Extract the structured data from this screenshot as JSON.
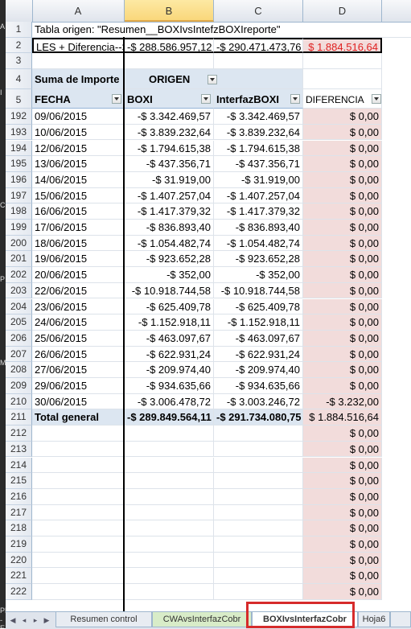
{
  "columns": [
    "A",
    "B",
    "C",
    "D"
  ],
  "left_strip": [
    "A",
    "I",
    "C",
    "P",
    "Ma",
    "PE",
    "-E"
  ],
  "row1": {
    "num": "1",
    "a": "Tabla origen: \"Resumen__BOXIvsIntefzBOXIreporte\""
  },
  "row2": {
    "num": "2",
    "a": "LES + Diferencia-->",
    "b": "-$ 288.586.957,12",
    "c": "-$ 290.471.473,76",
    "d": "$ 1.884.516,64"
  },
  "row3": {
    "num": "3"
  },
  "row4": {
    "num": "4",
    "a": "Suma de Importe",
    "b": "ORIGEN"
  },
  "row5": {
    "num": "5",
    "a": "FECHA",
    "b": "BOXI",
    "c": "InterfazBOXI",
    "d": "DIFERENCIA"
  },
  "data_rows": [
    {
      "num": "192",
      "fecha": "09/06/2015",
      "boxi": "-$ 3.342.469,57",
      "interfaz": "-$ 3.342.469,57",
      "dif": "$ 0,00"
    },
    {
      "num": "193",
      "fecha": "10/06/2015",
      "boxi": "-$ 3.839.232,64",
      "interfaz": "-$ 3.839.232,64",
      "dif": "$ 0,00"
    },
    {
      "num": "194",
      "fecha": "12/06/2015",
      "boxi": "-$ 1.794.615,38",
      "interfaz": "-$ 1.794.615,38",
      "dif": "$ 0,00"
    },
    {
      "num": "195",
      "fecha": "13/06/2015",
      "boxi": "-$ 437.356,71",
      "interfaz": "-$ 437.356,71",
      "dif": "$ 0,00"
    },
    {
      "num": "196",
      "fecha": "14/06/2015",
      "boxi": "-$ 31.919,00",
      "interfaz": "-$ 31.919,00",
      "dif": "$ 0,00"
    },
    {
      "num": "197",
      "fecha": "15/06/2015",
      "boxi": "-$ 1.407.257,04",
      "interfaz": "-$ 1.407.257,04",
      "dif": "$ 0,00"
    },
    {
      "num": "198",
      "fecha": "16/06/2015",
      "boxi": "-$ 1.417.379,32",
      "interfaz": "-$ 1.417.379,32",
      "dif": "$ 0,00"
    },
    {
      "num": "199",
      "fecha": "17/06/2015",
      "boxi": "-$ 836.893,40",
      "interfaz": "-$ 836.893,40",
      "dif": "$ 0,00"
    },
    {
      "num": "200",
      "fecha": "18/06/2015",
      "boxi": "-$ 1.054.482,74",
      "interfaz": "-$ 1.054.482,74",
      "dif": "$ 0,00"
    },
    {
      "num": "201",
      "fecha": "19/06/2015",
      "boxi": "-$ 923.652,28",
      "interfaz": "-$ 923.652,28",
      "dif": "$ 0,00"
    },
    {
      "num": "202",
      "fecha": "20/06/2015",
      "boxi": "-$ 352,00",
      "interfaz": "-$ 352,00",
      "dif": "$ 0,00"
    },
    {
      "num": "203",
      "fecha": "22/06/2015",
      "boxi": "-$ 10.918.744,58",
      "interfaz": "-$ 10.918.744,58",
      "dif": "$ 0,00"
    },
    {
      "num": "204",
      "fecha": "23/06/2015",
      "boxi": "-$ 625.409,78",
      "interfaz": "-$ 625.409,78",
      "dif": "$ 0,00"
    },
    {
      "num": "205",
      "fecha": "24/06/2015",
      "boxi": "-$ 1.152.918,11",
      "interfaz": "-$ 1.152.918,11",
      "dif": "$ 0,00"
    },
    {
      "num": "206",
      "fecha": "25/06/2015",
      "boxi": "-$ 463.097,67",
      "interfaz": "-$ 463.097,67",
      "dif": "$ 0,00"
    },
    {
      "num": "207",
      "fecha": "26/06/2015",
      "boxi": "-$ 622.931,24",
      "interfaz": "-$ 622.931,24",
      "dif": "$ 0,00"
    },
    {
      "num": "208",
      "fecha": "27/06/2015",
      "boxi": "-$ 209.974,40",
      "interfaz": "-$ 209.974,40",
      "dif": "$ 0,00"
    },
    {
      "num": "209",
      "fecha": "29/06/2015",
      "boxi": "-$ 934.635,66",
      "interfaz": "-$ 934.635,66",
      "dif": "$ 0,00"
    },
    {
      "num": "210",
      "fecha": "30/06/2015",
      "boxi": "-$ 3.006.478,72",
      "interfaz": "-$ 3.003.246,72",
      "dif": "-$ 3.232,00"
    }
  ],
  "total_row": {
    "num": "211",
    "label": "Total general",
    "boxi": "-$ 289.849.564,11",
    "interfaz": "-$ 291.734.080,75",
    "dif": "$ 1.884.516,64"
  },
  "empty_rows": [
    {
      "num": "212",
      "dif": "$ 0,00"
    },
    {
      "num": "213",
      "dif": "$ 0,00"
    },
    {
      "num": "214",
      "dif": "$ 0,00"
    },
    {
      "num": "215",
      "dif": "$ 0,00"
    },
    {
      "num": "216",
      "dif": "$ 0,00"
    },
    {
      "num": "217",
      "dif": "$ 0,00"
    },
    {
      "num": "218",
      "dif": "$ 0,00"
    },
    {
      "num": "219",
      "dif": "$ 0,00"
    },
    {
      "num": "220",
      "dif": "$ 0,00"
    },
    {
      "num": "221",
      "dif": "$ 0,00"
    },
    {
      "num": "222",
      "dif": "$ 0,00"
    }
  ],
  "tabs": {
    "t1": "Resumen control",
    "t2": "CWAvsInterfazCobr",
    "t3": "BOXIvsInterfazCobr",
    "t4": "Hoja6"
  },
  "colors": {
    "highlight": "#d62b2b",
    "diff_fill": "#f2dcdb",
    "negative": "#e02020"
  }
}
